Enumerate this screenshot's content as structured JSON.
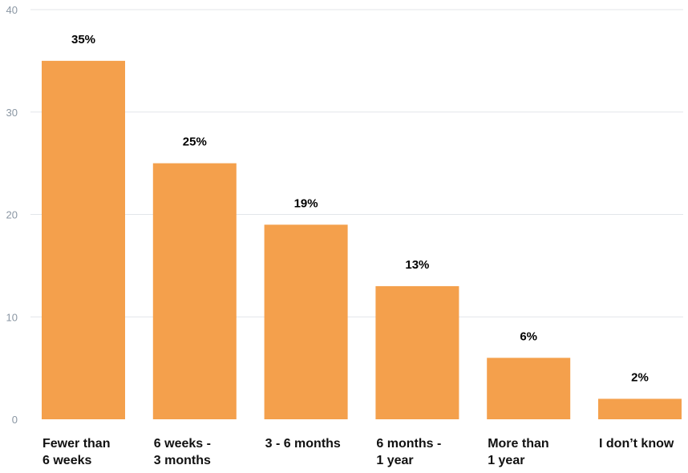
{
  "chart_data": {
    "type": "bar",
    "categories": [
      [
        "Fewer than",
        "6 weeks"
      ],
      [
        "6 weeks -",
        "3 months"
      ],
      [
        "3 - 6 months"
      ],
      [
        "6 months -",
        "1 year"
      ],
      [
        "More than",
        "1 year"
      ],
      [
        "I don’t know"
      ]
    ],
    "values": [
      35,
      25,
      19,
      13,
      6,
      2
    ],
    "value_labels": [
      "35%",
      "25%",
      "19%",
      "13%",
      "6%",
      "2%"
    ],
    "ylim": [
      0,
      40
    ],
    "yticks": [
      0,
      10,
      20,
      30,
      40
    ],
    "grid": true,
    "bar_color": "#f4a04c"
  }
}
